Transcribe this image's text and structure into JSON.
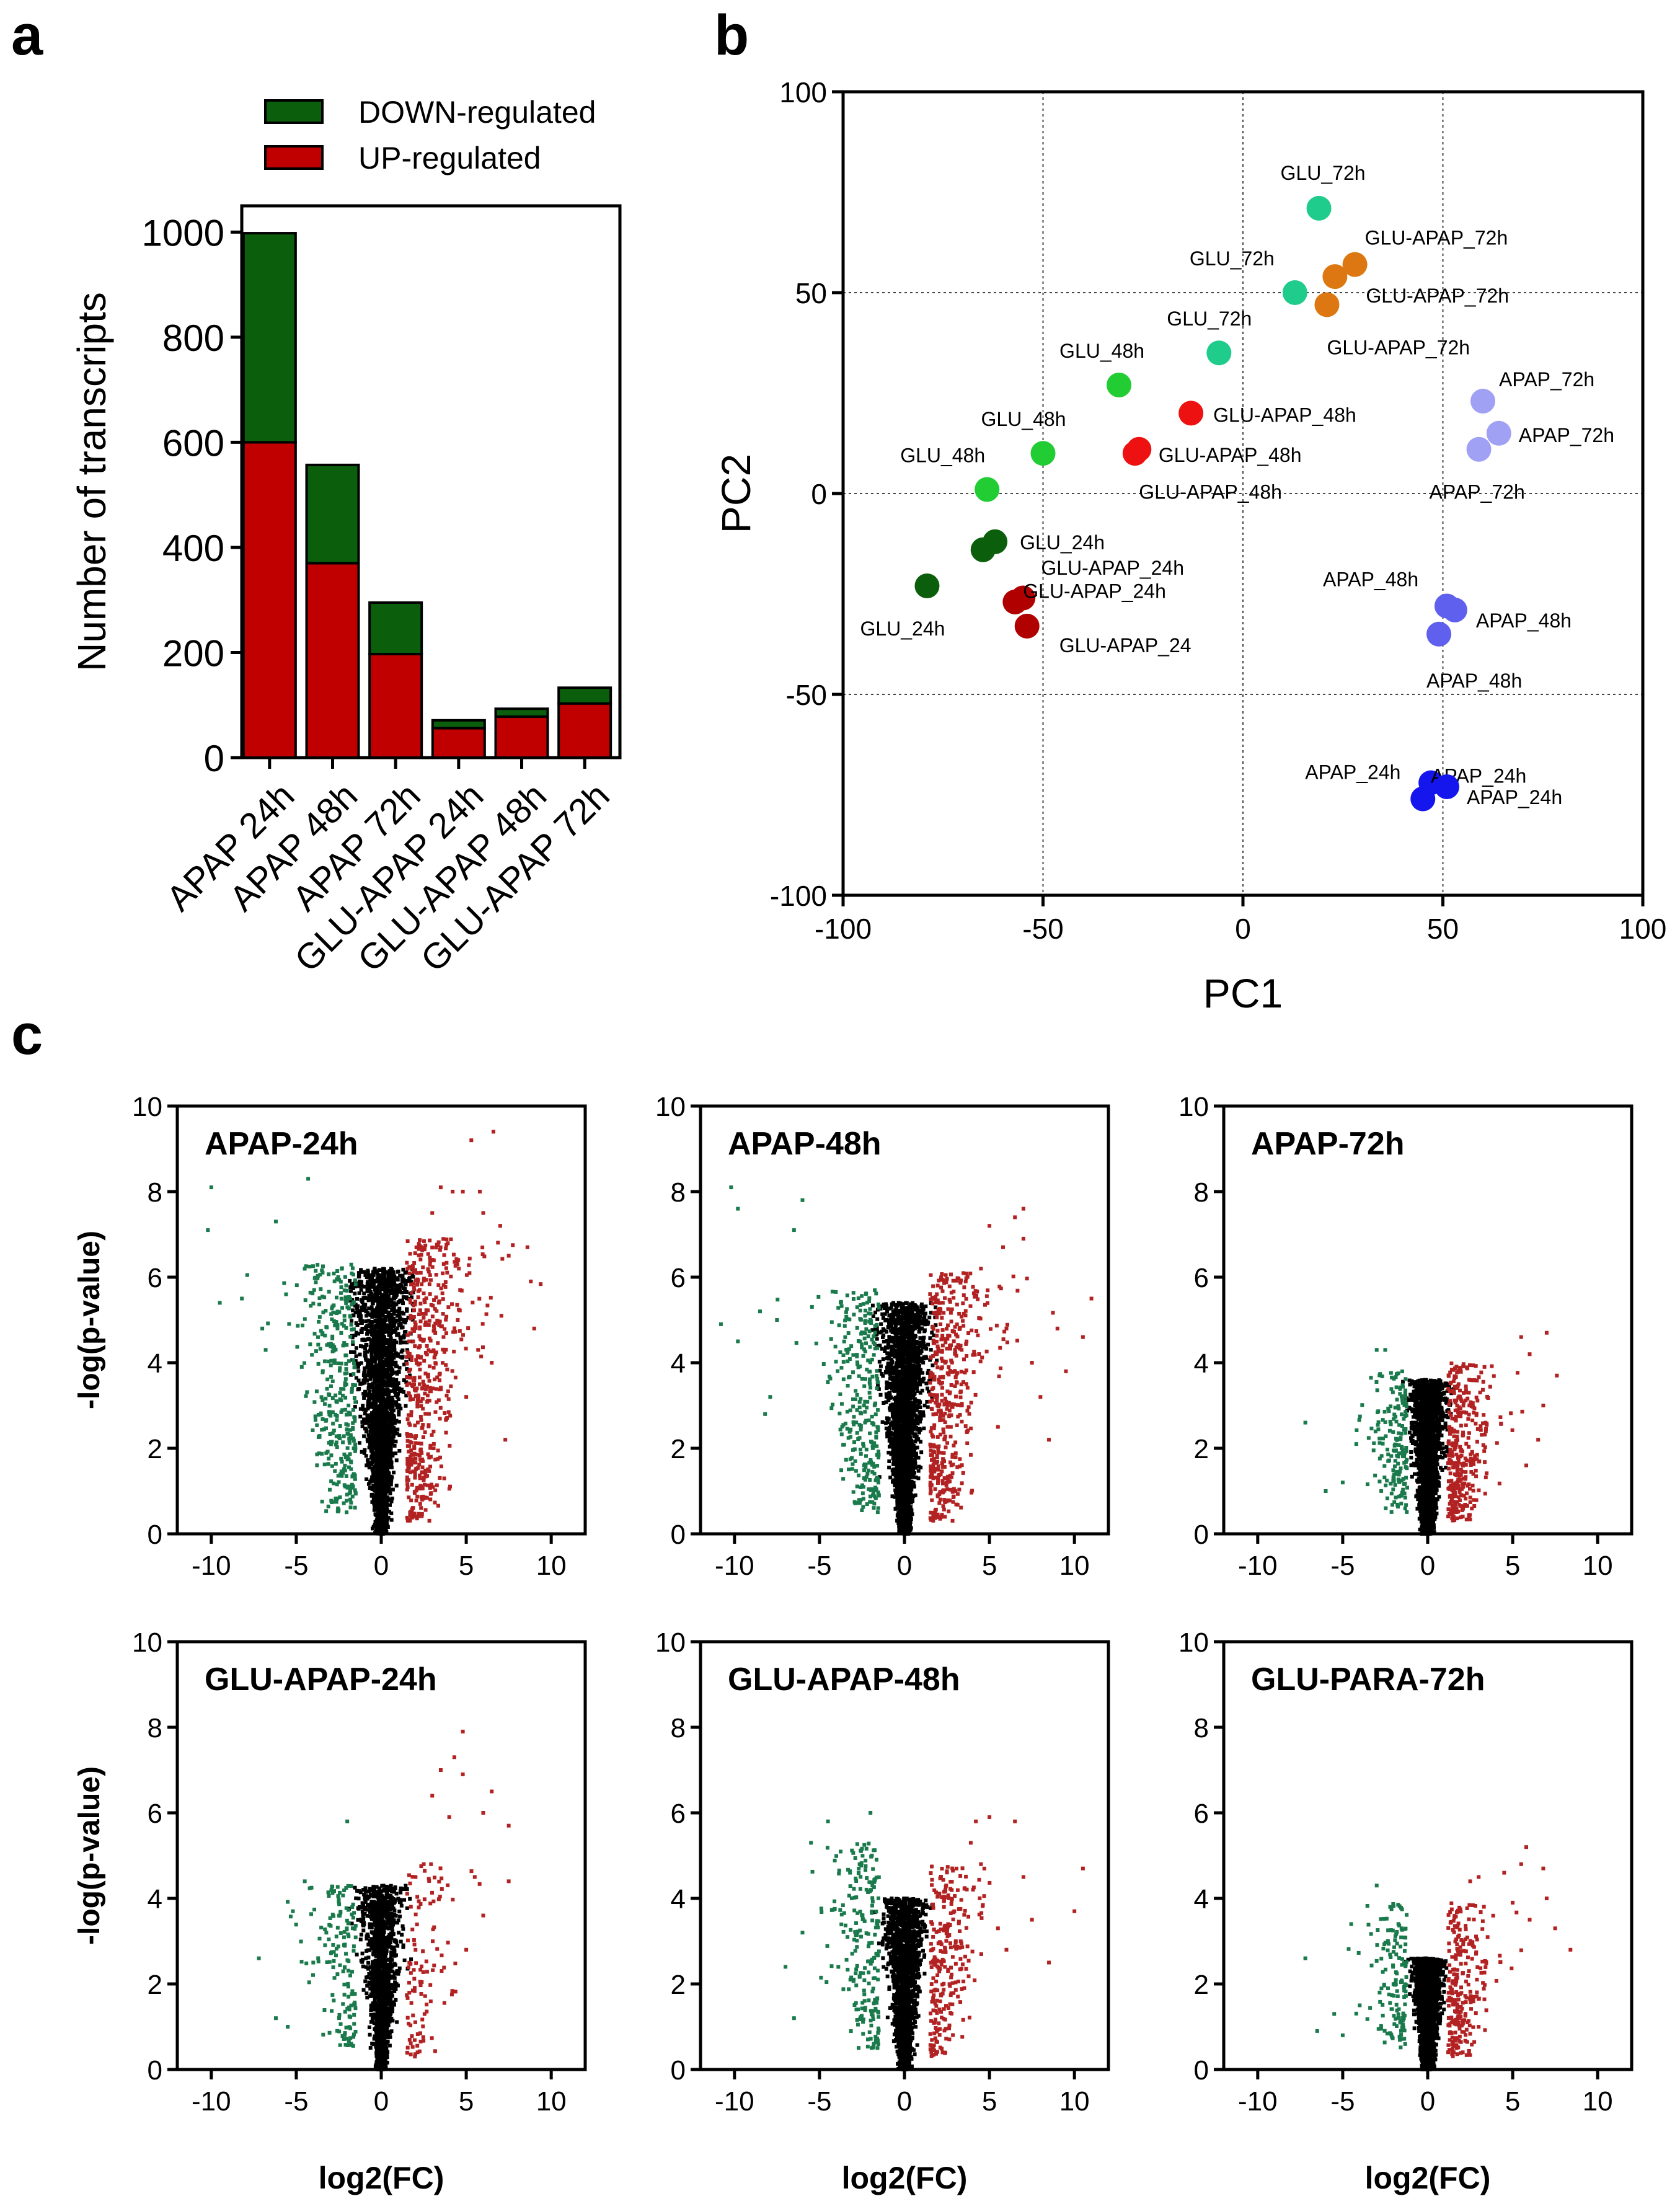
{
  "colors": {
    "down": "#0b5e0b",
    "up": "#c00000",
    "volcano_down": "#1a7a4c",
    "volcano_up": "#b32222",
    "volcano_ns": "#000000",
    "GLU_24h": "#0b5e0b",
    "GLU_48h": "#22cc33",
    "GLU_72h": "#1fcc8c",
    "GLU_APAP_24h": "#b00000",
    "GLU_APAP_48h": "#ee1111",
    "GLU_APAP_72h": "#dd7711",
    "APAP_24h": "#1515ee",
    "APAP_48h": "#6060ee",
    "APAP_72h": "#a0a0f5"
  },
  "panel_letters": {
    "a": "a",
    "b": "b",
    "c": "c"
  },
  "chart_data": [
    {
      "id": "bar",
      "type": "bar",
      "stacked": true,
      "ylabel": "Number of transcripts",
      "ylim": [
        0,
        1050
      ],
      "yticks": [
        0,
        200,
        400,
        600,
        800,
        1000
      ],
      "categories": [
        "APAP 24h",
        "APAP 48h",
        "APAP 72h",
        "GLU-APAP 24h",
        "GLU-APAP 48h",
        "GLU-APAP 72h"
      ],
      "series": [
        {
          "name": "UP-regulated",
          "values": [
            600,
            370,
            197,
            56,
            78,
            103
          ]
        },
        {
          "name": "DOWN-regulated",
          "values": [
            398,
            187,
            98,
            15,
            15,
            30
          ]
        }
      ],
      "legend": [
        "DOWN-regulated",
        "UP-regulated"
      ],
      "legend_position": "top"
    },
    {
      "id": "pca",
      "type": "scatter",
      "xlabel": "PC1",
      "ylabel": "PC2",
      "xlim": [
        -100,
        100
      ],
      "ylim": [
        -100,
        100
      ],
      "xticks": [
        -100,
        -50,
        0,
        50,
        100
      ],
      "yticks": [
        -100,
        -50,
        0,
        50,
        100
      ],
      "gridlines": [
        -50,
        0,
        50
      ],
      "points": [
        {
          "group": "GLU_24h",
          "x": -79,
          "y": -23,
          "label": "GLU_24h"
        },
        {
          "group": "GLU_24h",
          "x": -65,
          "y": -14,
          "label": ""
        },
        {
          "group": "GLU_24h",
          "x": -62,
          "y": -12,
          "label": "GLU_24h"
        },
        {
          "group": "GLU_48h",
          "x": -64,
          "y": 1,
          "label": "GLU_48h"
        },
        {
          "group": "GLU_48h",
          "x": -50,
          "y": 10,
          "label": "GLU_48h"
        },
        {
          "group": "GLU_48h",
          "x": -31,
          "y": 27,
          "label": "GLU_48h"
        },
        {
          "group": "GLU_72h",
          "x": -6,
          "y": 35,
          "label": "GLU_72h"
        },
        {
          "group": "GLU_72h",
          "x": 13,
          "y": 50,
          "label": "GLU_72h"
        },
        {
          "group": "GLU_72h",
          "x": 19,
          "y": 71,
          "label": "GLU_72h"
        },
        {
          "group": "GLU_APAP_24h",
          "x": -57,
          "y": -27,
          "label": "GLU-APAP_24h"
        },
        {
          "group": "GLU_APAP_24h",
          "x": -55,
          "y": -26,
          "label": "GLU-APAP_24h"
        },
        {
          "group": "GLU_APAP_24h",
          "x": -54,
          "y": -33,
          "label": "GLU-APAP_24"
        },
        {
          "group": "GLU_APAP_48h",
          "x": -27,
          "y": 10,
          "label": "GLU-APAP_48h"
        },
        {
          "group": "GLU_APAP_48h",
          "x": -26,
          "y": 11,
          "label": "GLU-APAP_48h"
        },
        {
          "group": "GLU_APAP_48h",
          "x": -13,
          "y": 20,
          "label": "GLU-APAP_48h"
        },
        {
          "group": "GLU_APAP_72h",
          "x": 21,
          "y": 47,
          "label": "GLU-APAP_72h"
        },
        {
          "group": "GLU_APAP_72h",
          "x": 23,
          "y": 54,
          "label": "GLU-APAP_72h"
        },
        {
          "group": "GLU_APAP_72h",
          "x": 28,
          "y": 57,
          "label": "GLU-APAP_72h"
        },
        {
          "group": "APAP_24h",
          "x": 45,
          "y": -76,
          "label": "APAP_24h"
        },
        {
          "group": "APAP_24h",
          "x": 47,
          "y": -72,
          "label": "APAP_24h"
        },
        {
          "group": "APAP_24h",
          "x": 51,
          "y": -73,
          "label": "APAP_24h"
        },
        {
          "group": "APAP_48h",
          "x": 49,
          "y": -35,
          "label": "APAP_48h"
        },
        {
          "group": "APAP_48h",
          "x": 51,
          "y": -28,
          "label": "APAP_48h"
        },
        {
          "group": "APAP_48h",
          "x": 53,
          "y": -29,
          "label": "APAP_48h"
        },
        {
          "group": "APAP_72h",
          "x": 59,
          "y": 11,
          "label": "APAP_72h"
        },
        {
          "group": "APAP_72h",
          "x": 60,
          "y": 23,
          "label": "APAP_72h"
        },
        {
          "group": "APAP_72h",
          "x": 64,
          "y": 15,
          "label": "APAP_72h"
        }
      ]
    },
    {
      "id": "volcano",
      "type": "scatter",
      "xlabel": "log2(FC)",
      "ylabel": "-log(p-value)",
      "xlim": [
        -12,
        12
      ],
      "ylim": [
        0,
        10
      ],
      "xticks": [
        -10,
        -5,
        0,
        5,
        10
      ],
      "yticks": [
        0,
        2,
        4,
        6,
        8,
        10
      ],
      "panels": [
        {
          "title": "APAP-24h",
          "max_y": 6.2,
          "fc_cut": 1.5,
          "n_ns": 2600,
          "sig_up": [
            [
              6.6,
              9.4
            ],
            [
              5.3,
              9.2
            ],
            [
              4.8,
              8.0
            ],
            [
              5.8,
              8.0
            ],
            [
              4.2,
              8.0
            ],
            [
              3.5,
              8.1
            ],
            [
              6.0,
              7.5
            ],
            [
              7.0,
              7.2
            ],
            [
              7.5,
              6.5
            ],
            [
              8.6,
              6.7
            ],
            [
              8.8,
              5.9
            ],
            [
              9.0,
              4.8
            ],
            [
              6.5,
              4.0
            ],
            [
              5.7,
              4.3
            ],
            [
              7.3,
              2.2
            ],
            [
              4.5,
              5.0
            ],
            [
              5.0,
              3.2
            ],
            [
              3.0,
              7.5
            ]
          ],
          "sig_down": [
            [
              -10.0,
              8.1
            ],
            [
              -10.2,
              7.1
            ],
            [
              -8.2,
              5.5
            ],
            [
              -9.5,
              5.4
            ],
            [
              -7.0,
              4.8
            ],
            [
              -6.2,
              7.3
            ],
            [
              -5.6,
              5.6
            ],
            [
              -6.8,
              4.3
            ],
            [
              -4.3,
              8.3
            ]
          ],
          "n_up": 520,
          "n_down": 360,
          "up_y": 6.6,
          "down_y": 5.8
        },
        {
          "title": "APAP-48h",
          "max_y": 5.4,
          "fc_cut": 1.5,
          "n_ns": 2600,
          "sig_up": [
            [
              7.0,
              7.6
            ],
            [
              6.5,
              7.4
            ],
            [
              5.0,
              7.2
            ],
            [
              5.8,
              6.7
            ],
            [
              7.0,
              6.9
            ],
            [
              9.0,
              4.8
            ],
            [
              11.0,
              5.5
            ],
            [
              9.5,
              3.8
            ],
            [
              10.5,
              4.6
            ],
            [
              7.5,
              4.0
            ],
            [
              6.0,
              4.8
            ],
            [
              8.0,
              3.2
            ],
            [
              5.5,
              2.5
            ],
            [
              4.5,
              6.2
            ],
            [
              8.5,
              2.2
            ]
          ],
          "sig_down": [
            [
              -10.2,
              8.1
            ],
            [
              -9.8,
              7.6
            ],
            [
              -8.5,
              5.2
            ],
            [
              -9.8,
              4.5
            ],
            [
              -10.8,
              4.9
            ],
            [
              -7.5,
              5.0
            ],
            [
              -6.0,
              7.8
            ],
            [
              -6.5,
              7.1
            ],
            [
              -7.9,
              3.2
            ],
            [
              -8.2,
              2.8
            ]
          ],
          "n_up": 470,
          "n_down": 300,
          "up_y": 5.8,
          "down_y": 5.2
        },
        {
          "title": "APAP-72h",
          "max_y": 3.6,
          "fc_cut": 1.2,
          "n_ns": 2200,
          "sig_up": [
            [
              7.0,
              4.7
            ],
            [
              7.6,
              3.7
            ],
            [
              6.8,
              3.0
            ],
            [
              6.0,
              4.2
            ],
            [
              5.5,
              4.6
            ],
            [
              6.5,
              2.2
            ],
            [
              5.8,
              1.6
            ]
          ],
          "sig_down": [
            [
              -7.2,
              2.6
            ],
            [
              -6.0,
              1.0
            ],
            [
              -4.2,
              2.1
            ],
            [
              -5.0,
              1.2
            ],
            [
              -3.0,
              4.3
            ],
            [
              -2.5,
              4.3
            ]
          ],
          "n_up": 360,
          "n_down": 180,
          "up_y": 3.7,
          "down_y": 3.3
        },
        {
          "title": "GLU-APAP-24h",
          "max_y": 4.3,
          "fc_cut": 1.5,
          "n_ns": 1700,
          "sig_up": [
            [
              4.8,
              7.9
            ],
            [
              4.3,
              7.3
            ],
            [
              3.5,
              7.0
            ],
            [
              4.8,
              6.9
            ],
            [
              6.5,
              6.5
            ],
            [
              7.5,
              5.7
            ],
            [
              6.0,
              6.0
            ],
            [
              7.5,
              4.4
            ],
            [
              5.5,
              4.5
            ],
            [
              4.0,
              5.9
            ],
            [
              3.0,
              6.4
            ],
            [
              2.5,
              4.8
            ],
            [
              6.0,
              3.6
            ],
            [
              5.0,
              2.8
            ]
          ],
          "sig_down": [
            [
              -7.2,
              2.6
            ],
            [
              -6.2,
              1.2
            ],
            [
              -5.5,
              1.0
            ],
            [
              -5.2,
              3.7
            ],
            [
              -4.5,
              4.4
            ],
            [
              -2.0,
              5.8
            ],
            [
              -4.0,
              2.5
            ]
          ],
          "n_up": 110,
          "n_down": 150,
          "up_y": 4.5,
          "down_y": 3.8
        },
        {
          "title": "GLU-APAP-48h",
          "max_y": 4.0,
          "fc_cut": 1.5,
          "n_ns": 2000,
          "sig_up": [
            [
              5.0,
              5.9
            ],
            [
              4.2,
              5.8
            ],
            [
              6.5,
              5.8
            ],
            [
              3.9,
              5.3
            ],
            [
              7.0,
              4.5
            ],
            [
              10.5,
              4.7
            ],
            [
              10.0,
              3.7
            ],
            [
              7.5,
              3.5
            ],
            [
              8.5,
              2.5
            ],
            [
              6.0,
              2.8
            ],
            [
              4.5,
              4.8
            ],
            [
              5.5,
              3.3
            ]
          ],
          "sig_down": [
            [
              -7.0,
              2.4
            ],
            [
              -6.5,
              1.2
            ],
            [
              -5.5,
              5.3
            ],
            [
              -4.5,
              5.8
            ],
            [
              -2.0,
              6.0
            ],
            [
              -3.2,
              4.6
            ],
            [
              -6.0,
              3.2
            ]
          ],
          "n_up": 260,
          "n_down": 220,
          "up_y": 4.5,
          "down_y": 4.8
        },
        {
          "title": "GLU-PARA-72h",
          "max_y": 2.6,
          "fc_cut": 1.2,
          "n_ns": 2000,
          "sig_up": [
            [
              5.8,
              5.2
            ],
            [
              5.5,
              4.8
            ],
            [
              6.8,
              4.7
            ],
            [
              7.0,
              4.0
            ],
            [
              6.0,
              3.5
            ],
            [
              8.4,
              2.8
            ],
            [
              7.5,
              3.3
            ],
            [
              4.5,
              4.6
            ],
            [
              5.0,
              3.9
            ],
            [
              3.0,
              4.5
            ],
            [
              2.5,
              4.4
            ]
          ],
          "sig_down": [
            [
              -7.2,
              2.6
            ],
            [
              -6.5,
              0.9
            ],
            [
              -5.5,
              1.3
            ],
            [
              -5.0,
              0.8
            ],
            [
              -3.0,
              4.3
            ],
            [
              -4.5,
              3.4
            ],
            [
              -4.0,
              1.5
            ]
          ],
          "n_up": 260,
          "n_down": 150,
          "up_y": 3.6,
          "down_y": 3.4
        }
      ]
    }
  ]
}
